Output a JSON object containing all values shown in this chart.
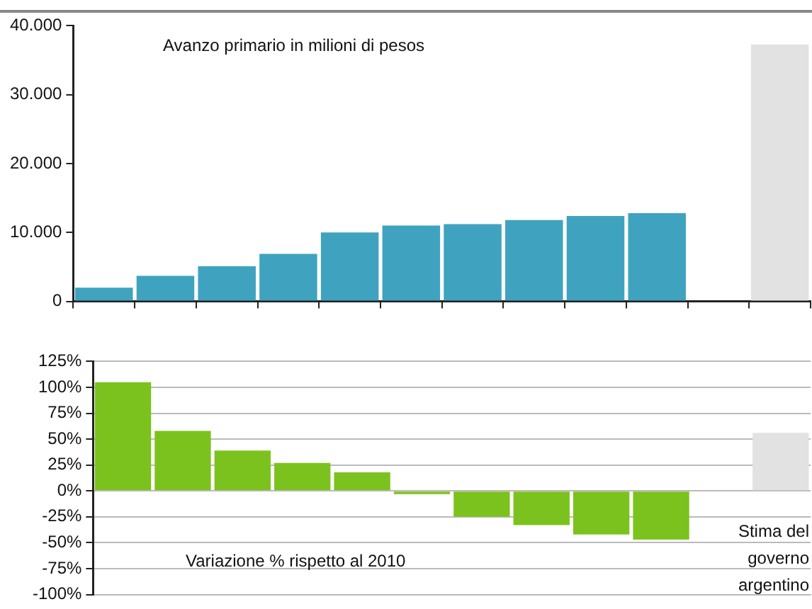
{
  "chart_data": [
    {
      "type": "bar",
      "categories": [
        null,
        null,
        null,
        null,
        null,
        null,
        null,
        null,
        null,
        null,
        null,
        null
      ],
      "values": [
        2000,
        3700,
        5100,
        6900,
        10000,
        11000,
        11200,
        11800,
        12400,
        12800,
        null,
        37300
      ],
      "colors": [
        "#3fa3bf",
        "#3fa3bf",
        "#3fa3bf",
        "#3fa3bf",
        "#3fa3bf",
        "#3fa3bf",
        "#3fa3bf",
        "#3fa3bf",
        "#3fa3bf",
        "#3fa3bf",
        "#3fa3bf",
        "#e2e2e2"
      ],
      "ylim": [
        0,
        40000
      ],
      "yticks": [
        {
          "value": 0,
          "label": "0"
        },
        {
          "value": 10000,
          "label": "10.000"
        },
        {
          "value": 20000,
          "label": "20.000"
        },
        {
          "value": 30000,
          "label": "30.000"
        },
        {
          "value": 40000,
          "label": "40.000"
        }
      ],
      "grid": false,
      "tick_labels": "y",
      "annotations": [
        "Avanzo primario in milioni di pesos"
      ]
    },
    {
      "type": "bar",
      "categories": [
        null,
        null,
        null,
        null,
        null,
        null,
        null,
        null,
        null,
        null,
        null,
        null
      ],
      "values": [
        105,
        58,
        39,
        27,
        18,
        -3,
        -25,
        -33,
        -42,
        -47,
        null,
        56
      ],
      "colors": [
        "#7cc21e",
        "#7cc21e",
        "#7cc21e",
        "#7cc21e",
        "#7cc21e",
        "#7cc21e",
        "#7cc21e",
        "#7cc21e",
        "#7cc21e",
        "#7cc21e",
        "#7cc21e",
        "#e2e2e2"
      ],
      "ylim": [
        -100,
        125
      ],
      "yticks": [
        {
          "value": -100,
          "label": "-100%"
        },
        {
          "value": -75,
          "label": "-75%"
        },
        {
          "value": -50,
          "label": "-50%"
        },
        {
          "value": -25,
          "label": "-25%"
        },
        {
          "value": 0,
          "label": "0%"
        },
        {
          "value": 25,
          "label": "25%"
        },
        {
          "value": 50,
          "label": "50%"
        },
        {
          "value": 75,
          "label": "75%"
        },
        {
          "value": 100,
          "label": "100%"
        },
        {
          "value": 125,
          "label": "125%"
        }
      ],
      "grid": "y",
      "tick_labels": "y",
      "annotations": [
        "Variazione % rispetto al 2010",
        "Stima del governo argentino"
      ]
    }
  ]
}
